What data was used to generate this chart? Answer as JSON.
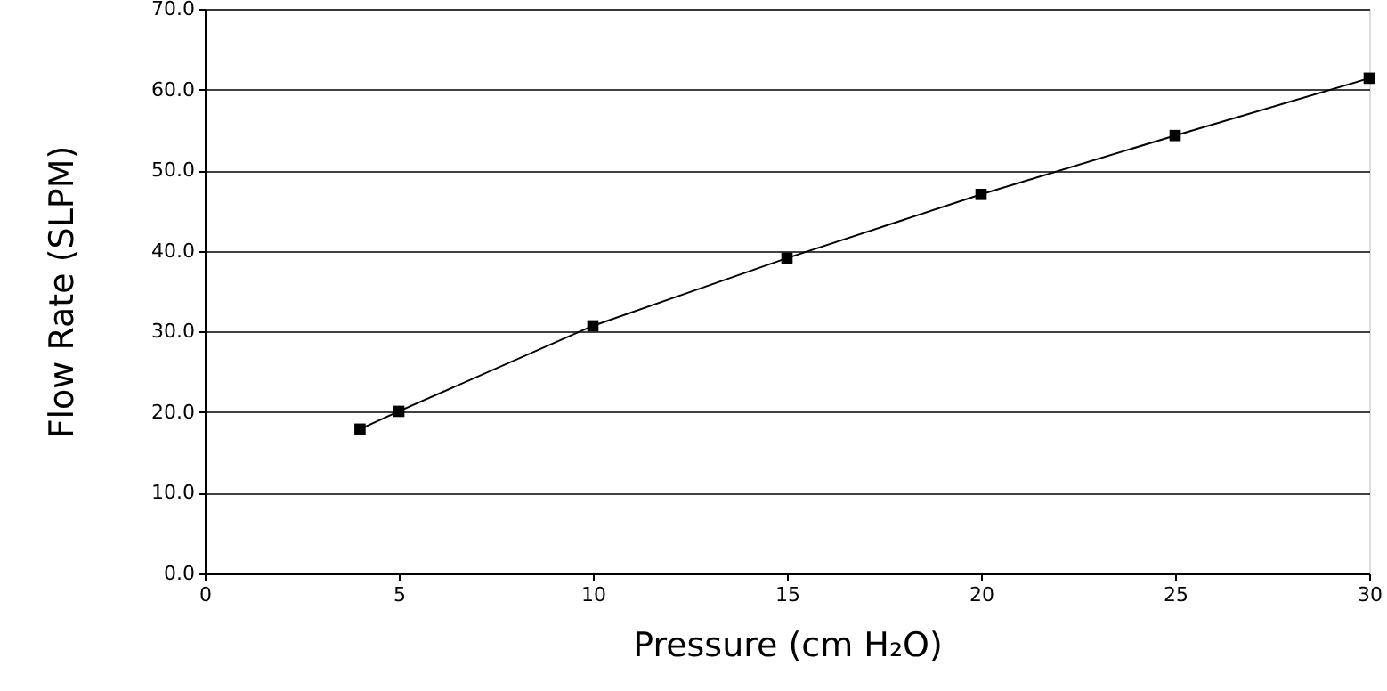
{
  "chart_data": {
    "type": "line",
    "xlabel": "Pressure (cm H₂O)",
    "ylabel": "Flow Rate (SLPM)",
    "x": [
      4,
      5,
      10,
      15,
      20,
      25,
      30
    ],
    "series": [
      {
        "color": "#000000",
        "values": [
          17.9,
          20.1,
          30.7,
          39.1,
          47.0,
          54.3,
          61.4
        ]
      }
    ],
    "xlim": [
      0,
      30
    ],
    "xticks": [
      0,
      5,
      10,
      15,
      20,
      25,
      30
    ],
    "ylim": [
      0,
      70
    ],
    "yticks": [
      {
        "value": 0,
        "label": "0.0"
      },
      {
        "value": 10,
        "label": "10.0"
      },
      {
        "value": 20,
        "label": "20.0"
      },
      {
        "value": 30,
        "label": "30.0"
      },
      {
        "value": 40,
        "label": "40.0"
      },
      {
        "value": 50,
        "label": "50.0"
      },
      {
        "value": 60,
        "label": "60.0"
      },
      {
        "value": 70,
        "label": "70.0"
      }
    ],
    "grid": "y",
    "marker": "square",
    "line_style": "solid"
  }
}
